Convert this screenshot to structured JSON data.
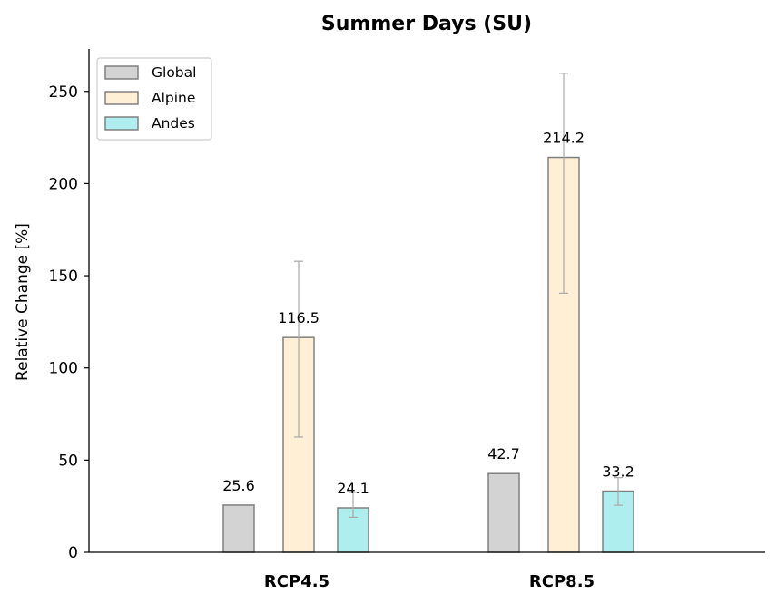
{
  "chart_data": {
    "type": "bar",
    "title": "Summer Days (SU)",
    "xlabel": "",
    "ylabel": "Relative Change [%]",
    "categories": [
      "RCP4.5",
      "RCP8.5"
    ],
    "ylim": [
      0,
      273
    ],
    "yticks": [
      0,
      50,
      100,
      150,
      200,
      250
    ],
    "grid": false,
    "legend_position": "top-left",
    "series": [
      {
        "name": "Global",
        "color": "#d3d3d3",
        "values": [
          25.6,
          42.7
        ],
        "error_low": [
          null,
          null
        ],
        "error_high": [
          null,
          null
        ],
        "labels": [
          "25.6",
          "42.7"
        ]
      },
      {
        "name": "Alpine",
        "color": "#ffefd5",
        "values": [
          116.5,
          214.2
        ],
        "error_low": [
          62.5,
          140.5
        ],
        "error_high": [
          157.8,
          259.8
        ],
        "labels": [
          "116.5",
          "214.2"
        ]
      },
      {
        "name": "Andes",
        "color": "#afeeee",
        "values": [
          24.1,
          33.2
        ],
        "error_low": [
          19.0,
          25.5
        ],
        "error_high": [
          32.5,
          40.5
        ],
        "labels": [
          "24.1",
          "33.2"
        ]
      }
    ],
    "edge_color": "#808080",
    "error_color": "#a9a9a9"
  }
}
